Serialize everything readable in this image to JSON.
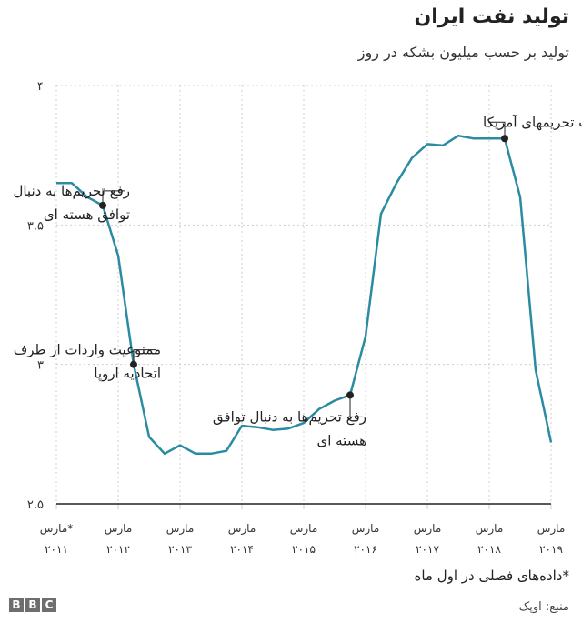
{
  "header": {
    "title": "تولید نفت ایران",
    "subtitle": "تولید بر حسب میلیون بشکه در روز"
  },
  "footer": {
    "footnote": "*داده‌های فصلی در اول ماه",
    "source": "منبع: اوپک",
    "logo_letters": [
      "B",
      "B",
      "C"
    ]
  },
  "colors": {
    "line": "#2a8ba3",
    "grid": "#cfcfcf",
    "baseline": "#222222",
    "text": "#222222"
  },
  "chart_data": {
    "type": "line",
    "title": "تولید نفت ایران",
    "ylabel": "تولید بر حسب میلیون بشکه در روز",
    "ylim": [
      2.5,
      4.0
    ],
    "y_ticks": [
      {
        "value": 4.0,
        "label": "۴"
      },
      {
        "value": 3.5,
        "label": "۳.۵"
      },
      {
        "value": 3.0,
        "label": "۳"
      },
      {
        "value": 2.5,
        "label": "۲.۵"
      }
    ],
    "x_ticks": [
      {
        "x": 2011,
        "month": "مارس*",
        "year": "۲۰۱۱"
      },
      {
        "x": 2012,
        "month": "مارس",
        "year": "۲۰۱۲"
      },
      {
        "x": 2013,
        "month": "مارس",
        "year": "۲۰۱۳"
      },
      {
        "x": 2014,
        "month": "مارس",
        "year": "۲۰۱۴"
      },
      {
        "x": 2015,
        "month": "مارس",
        "year": "۲۰۱۵"
      },
      {
        "x": 2016,
        "month": "مارس",
        "year": "۲۰۱۶"
      },
      {
        "x": 2017,
        "month": "مارس",
        "year": "۲۰۱۷"
      },
      {
        "x": 2018,
        "month": "مارس",
        "year": "۲۰۱۸"
      },
      {
        "x": 2019,
        "month": "مارس",
        "year": "۲۰۱۹"
      }
    ],
    "xlim": [
      2011,
      2019
    ],
    "series": [
      {
        "x": [
          2011.0,
          2011.25,
          2011.5,
          2011.75,
          2012.0,
          2012.25,
          2012.5,
          2012.75,
          2013.0,
          2013.25,
          2013.5,
          2013.75,
          2014.0,
          2014.25,
          2014.5,
          2014.75,
          2015.0,
          2015.25,
          2015.5,
          2015.75,
          2016.0,
          2016.25,
          2016.5,
          2016.75,
          2017.0,
          2017.25,
          2017.5,
          2017.75,
          2018.0,
          2018.25,
          2018.5,
          2018.75,
          2019.0
        ],
        "values": [
          3.65,
          3.65,
          3.6,
          3.57,
          3.39,
          3.0,
          2.74,
          2.68,
          2.71,
          2.68,
          2.68,
          2.69,
          2.78,
          2.775,
          2.765,
          2.77,
          2.79,
          2.84,
          2.87,
          2.89,
          3.1,
          3.54,
          3.65,
          3.74,
          3.79,
          3.785,
          3.82,
          3.81,
          3.81,
          3.81,
          3.6,
          2.98,
          2.72
        ]
      }
    ],
    "annotations": [
      {
        "x": 2011.75,
        "y": 3.57,
        "lines": [
          "رفع تحریم‌ها به دنبال",
          "توافق هسته ای"
        ],
        "side": "right-up"
      },
      {
        "x": 2012.25,
        "y": 3.0,
        "lines": [
          "ممنوعیت واردات از طرف",
          "اتحادیه اروپا"
        ],
        "side": "right-up"
      },
      {
        "x": 2015.75,
        "y": 2.89,
        "lines": [
          "رفع تحریم‌ها به دنبال توافق",
          "هسته ای"
        ],
        "side": "right-down"
      },
      {
        "x": 2018.25,
        "y": 3.81,
        "lines": [
          "بازگشت تحریمهای آمریکا"
        ],
        "side": "left-up"
      }
    ],
    "grid": true,
    "legend": "none"
  }
}
